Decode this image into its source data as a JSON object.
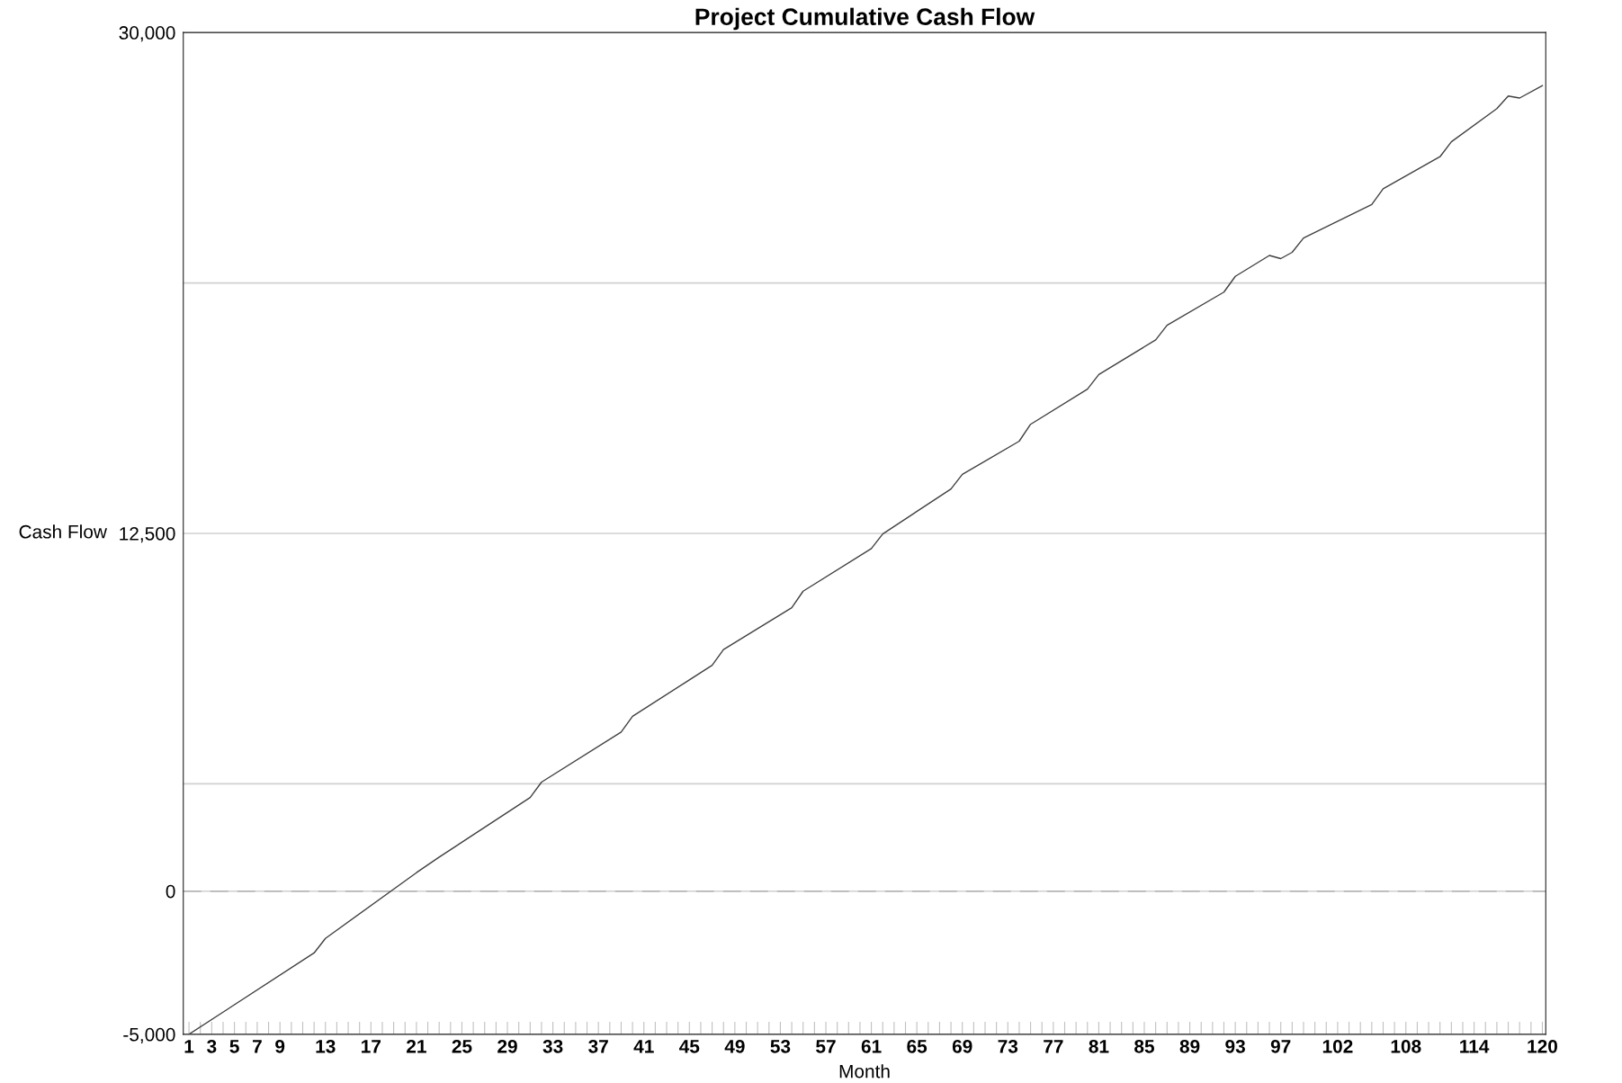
{
  "chart_data": {
    "type": "line",
    "title": "Project Cumulative Cash Flow",
    "xlabel": "Month",
    "ylabel": "Cash Flow",
    "series": [
      {
        "color": "#404040",
        "x": [
          1,
          12,
          13,
          21,
          23,
          31,
          32,
          39,
          40,
          47,
          48,
          54,
          55,
          61,
          62,
          68,
          69,
          74,
          75,
          80,
          81,
          86,
          87,
          92,
          93,
          96,
          97,
          98,
          99,
          105,
          106,
          111,
          112,
          116,
          117,
          118,
          120
        ],
        "values": [
          -5000,
          -2160,
          -1650,
          645,
          1190,
          3270,
          3810,
          5560,
          6110,
          7890,
          8440,
          9900,
          10480,
          11970,
          12480,
          14050,
          14560,
          15720,
          16310,
          17540,
          18050,
          19260,
          19770,
          20930,
          21480,
          22210,
          22100,
          22320,
          22820,
          23990,
          24540,
          25660,
          26180,
          27340,
          27780,
          27710,
          28140
        ]
      }
    ],
    "xlim": [
      0.5,
      120.3
    ],
    "ylim": [
      -5000,
      30000
    ],
    "yticks": [
      {
        "value": -5000,
        "label": "-5,000"
      },
      0,
      {
        "value": 3750,
        "label": null
      },
      {
        "value": 12500,
        "label": "12,500"
      },
      {
        "value": 21250,
        "label": null
      },
      {
        "value": 30000,
        "label": "30,000"
      }
    ],
    "xticks": [
      1,
      {
        "value": 2,
        "label": null
      },
      3,
      {
        "value": 4,
        "label": null
      },
      5,
      {
        "value": 6,
        "label": null
      },
      7,
      {
        "value": 8,
        "label": null
      },
      9,
      {
        "value": 10,
        "label": null
      },
      {
        "value": 11,
        "label": null
      },
      {
        "value": 12,
        "label": null
      },
      13,
      {
        "value": 14,
        "label": null
      },
      {
        "value": 15,
        "label": null
      },
      {
        "value": 16,
        "label": null
      },
      17,
      {
        "value": 18,
        "label": null
      },
      {
        "value": 19,
        "label": null
      },
      {
        "value": 20,
        "label": null
      },
      21,
      {
        "value": 22,
        "label": null
      },
      {
        "value": 23,
        "label": null
      },
      {
        "value": 24,
        "label": null
      },
      25,
      {
        "value": 26,
        "label": null
      },
      {
        "value": 27,
        "label": null
      },
      {
        "value": 28,
        "label": null
      },
      29,
      {
        "value": 30,
        "label": null
      },
      {
        "value": 31,
        "label": null
      },
      {
        "value": 32,
        "label": null
      },
      33,
      {
        "value": 34,
        "label": null
      },
      {
        "value": 35,
        "label": null
      },
      {
        "value": 36,
        "label": null
      },
      37,
      {
        "value": 38,
        "label": null
      },
      {
        "value": 39,
        "label": null
      },
      {
        "value": 40,
        "label": null
      },
      41,
      {
        "value": 42,
        "label": null
      },
      {
        "value": 43,
        "label": null
      },
      {
        "value": 44,
        "label": null
      },
      45,
      {
        "value": 46,
        "label": null
      },
      {
        "value": 47,
        "label": null
      },
      {
        "value": 48,
        "label": null
      },
      49,
      {
        "value": 50,
        "label": null
      },
      {
        "value": 51,
        "label": null
      },
      {
        "value": 52,
        "label": null
      },
      53,
      {
        "value": 54,
        "label": null
      },
      {
        "value": 55,
        "label": null
      },
      {
        "value": 56,
        "label": null
      },
      57,
      {
        "value": 58,
        "label": null
      },
      {
        "value": 59,
        "label": null
      },
      {
        "value": 60,
        "label": null
      },
      61,
      {
        "value": 62,
        "label": null
      },
      {
        "value": 63,
        "label": null
      },
      {
        "value": 64,
        "label": null
      },
      65,
      {
        "value": 66,
        "label": null
      },
      {
        "value": 67,
        "label": null
      },
      {
        "value": 68,
        "label": null
      },
      69,
      {
        "value": 70,
        "label": null
      },
      {
        "value": 71,
        "label": null
      },
      {
        "value": 72,
        "label": null
      },
      73,
      {
        "value": 74,
        "label": null
      },
      {
        "value": 75,
        "label": null
      },
      {
        "value": 76,
        "label": null
      },
      77,
      {
        "value": 78,
        "label": null
      },
      {
        "value": 79,
        "label": null
      },
      {
        "value": 80,
        "label": null
      },
      81,
      {
        "value": 82,
        "label": null
      },
      {
        "value": 83,
        "label": null
      },
      {
        "value": 84,
        "label": null
      },
      85,
      {
        "value": 86,
        "label": null
      },
      {
        "value": 87,
        "label": null
      },
      {
        "value": 88,
        "label": null
      },
      89,
      {
        "value": 90,
        "label": null
      },
      {
        "value": 91,
        "label": null
      },
      {
        "value": 92,
        "label": null
      },
      93,
      {
        "value": 94,
        "label": null
      },
      {
        "value": 95,
        "label": null
      },
      {
        "value": 96,
        "label": null
      },
      97,
      {
        "value": 98,
        "label": null
      },
      {
        "value": 99,
        "label": null
      },
      {
        "value": 100,
        "label": null
      },
      {
        "value": 101,
        "label": null
      },
      102,
      {
        "value": 103,
        "label": null
      },
      {
        "value": 104,
        "label": null
      },
      {
        "value": 105,
        "label": null
      },
      {
        "value": 106,
        "label": null
      },
      {
        "value": 107,
        "label": null
      },
      108,
      {
        "value": 109,
        "label": null
      },
      {
        "value": 110,
        "label": null
      },
      {
        "value": 111,
        "label": null
      },
      {
        "value": 112,
        "label": null
      },
      {
        "value": 113,
        "label": null
      },
      114,
      {
        "value": 115,
        "label": null
      },
      {
        "value": 116,
        "label": null
      },
      {
        "value": 117,
        "label": null
      },
      {
        "value": 118,
        "label": null
      },
      {
        "value": 119,
        "label": null
      },
      120
    ],
    "grid": "y",
    "marker": "none",
    "line_style": "solid",
    "ref_lines": [
      {
        "axis": "y",
        "value": 0,
        "color": "#b0b0b0",
        "line_style": "dashed"
      }
    ]
  }
}
